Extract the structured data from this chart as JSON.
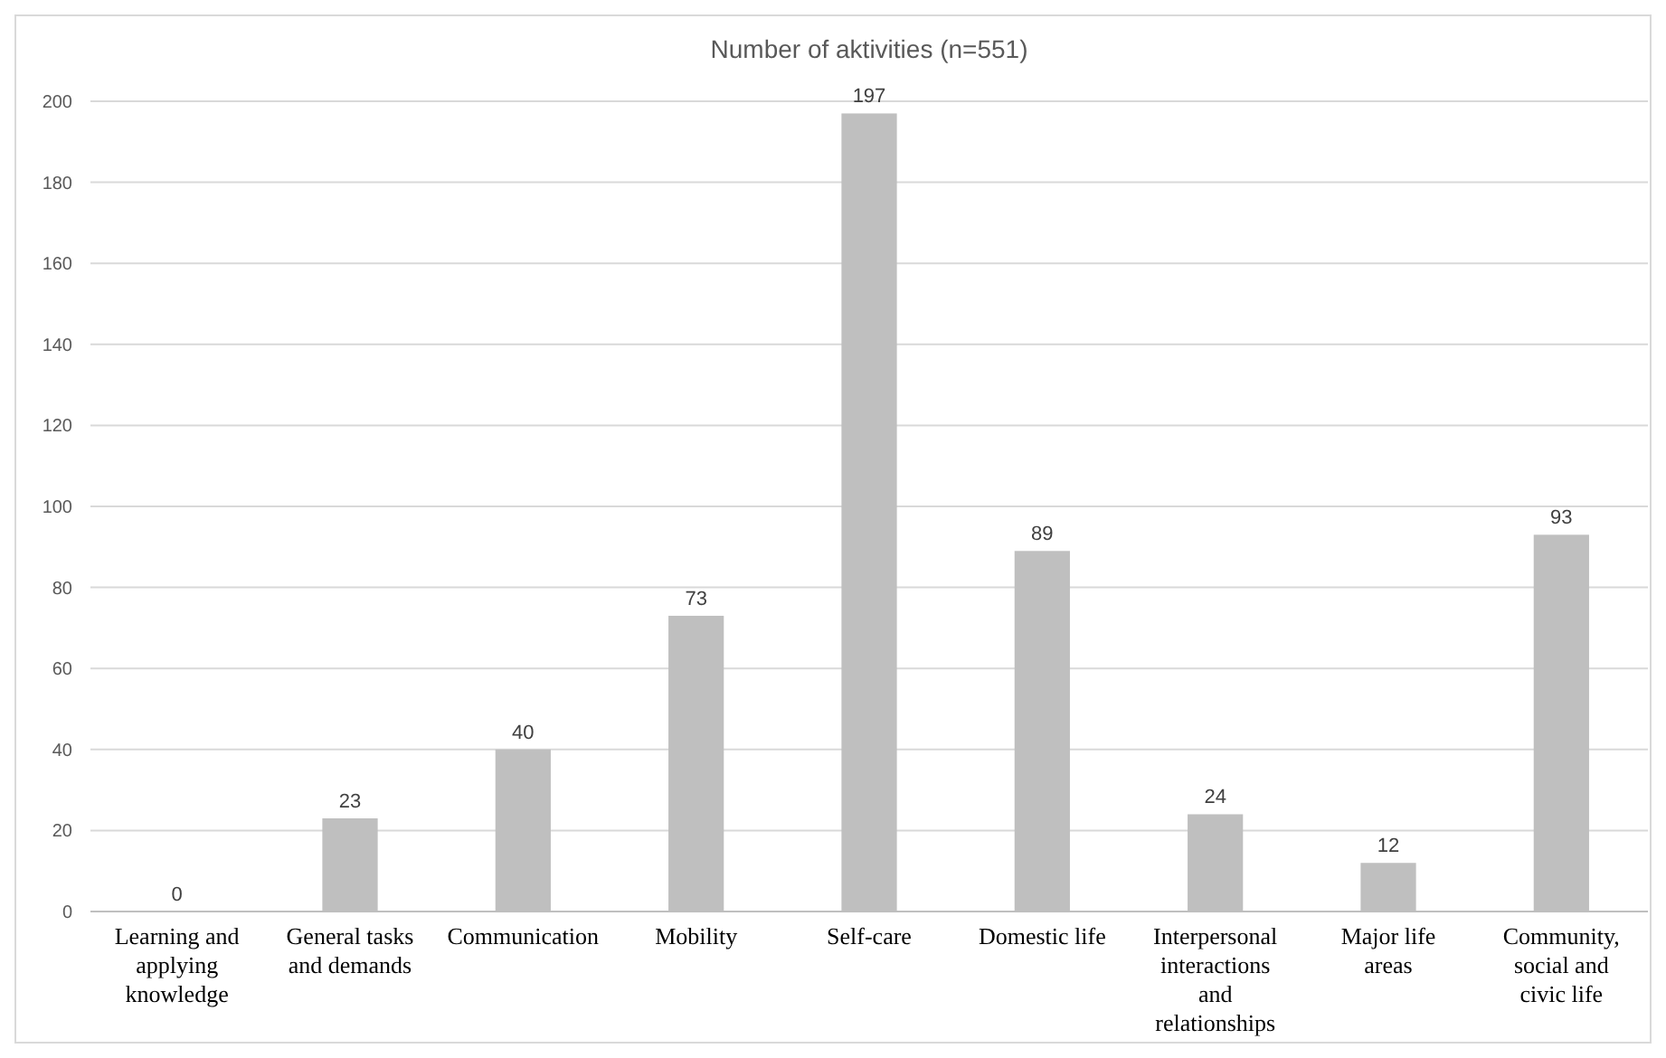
{
  "chart_data": {
    "type": "bar",
    "title": "Number of aktivities (n=551)",
    "categories": [
      "Learning and applying knowledge",
      "General tasks and demands",
      "Communication",
      "Mobility",
      "Self-care",
      "Domestic life",
      "Interpersonal interactions and relationships",
      "Major life areas",
      "Community, social and civic life"
    ],
    "values": [
      0,
      23,
      40,
      73,
      197,
      89,
      24,
      12,
      93
    ],
    "color": "#bfbfbf",
    "ylim": [
      0,
      200
    ],
    "yticks": [
      0,
      20,
      40,
      60,
      80,
      100,
      120,
      140,
      160,
      180,
      200
    ],
    "grid": "y",
    "data_labels": true
  }
}
